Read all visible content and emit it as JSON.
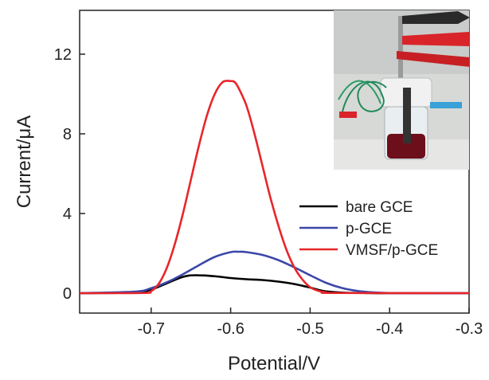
{
  "chart_data": {
    "type": "line",
    "xlabel": "Potential/V",
    "ylabel": "Current/μA",
    "xlim": [
      -0.79,
      -0.3
    ],
    "ylim": [
      -1.0,
      14.2
    ],
    "x_ticks": [
      -0.7,
      -0.6,
      -0.5,
      -0.4,
      -0.3
    ],
    "x_tick_labels": [
      "-0.7",
      "-0.6",
      "-0.5",
      "-0.4",
      "-0.3"
    ],
    "y_ticks": [
      0,
      4,
      8,
      12
    ],
    "y_tick_labels": [
      "0",
      "4",
      "8",
      "12"
    ],
    "grid": false,
    "legend_position": "lower-right",
    "series": [
      {
        "name": "bare GCE",
        "color": "#000000",
        "x": [
          -0.79,
          -0.72,
          -0.7,
          -0.68,
          -0.66,
          -0.645,
          -0.62,
          -0.6,
          -0.58,
          -0.56,
          -0.54,
          -0.52,
          -0.5,
          -0.49,
          -0.48,
          -0.46,
          -0.44,
          -0.42,
          -0.4,
          -0.3
        ],
        "y": [
          0.0,
          0.03,
          0.18,
          0.5,
          0.82,
          0.9,
          0.85,
          0.76,
          0.7,
          0.66,
          0.58,
          0.46,
          0.28,
          0.17,
          0.09,
          0.03,
          0.01,
          0.0,
          0.0,
          0.0
        ]
      },
      {
        "name": "p-GCE",
        "color": "#3b47a8",
        "x": [
          -0.79,
          -0.72,
          -0.7,
          -0.68,
          -0.66,
          -0.64,
          -0.62,
          -0.6,
          -0.59,
          -0.58,
          -0.56,
          -0.54,
          -0.52,
          -0.5,
          -0.48,
          -0.46,
          -0.44,
          -0.42,
          -0.4,
          -0.38,
          -0.3
        ],
        "y": [
          0.0,
          0.08,
          0.25,
          0.55,
          0.95,
          1.4,
          1.82,
          2.06,
          2.08,
          2.06,
          1.92,
          1.66,
          1.3,
          0.9,
          0.52,
          0.26,
          0.11,
          0.04,
          0.01,
          0.0,
          0.0
        ]
      },
      {
        "name": "VMSF/p-GCE",
        "color": "#e8262a",
        "x": [
          -0.79,
          -0.71,
          -0.7,
          -0.69,
          -0.68,
          -0.67,
          -0.66,
          -0.65,
          -0.64,
          -0.63,
          -0.62,
          -0.61,
          -0.6,
          -0.595,
          -0.59,
          -0.58,
          -0.57,
          -0.56,
          -0.55,
          -0.54,
          -0.53,
          -0.52,
          -0.51,
          -0.5,
          -0.49,
          -0.48,
          -0.47,
          -0.3
        ],
        "y": [
          0.0,
          0.01,
          0.1,
          0.5,
          1.3,
          2.5,
          4.0,
          5.7,
          7.4,
          8.9,
          10.0,
          10.6,
          10.65,
          10.6,
          10.3,
          9.4,
          8.0,
          6.4,
          4.8,
          3.4,
          2.2,
          1.3,
          0.7,
          0.3,
          0.12,
          0.04,
          0.01,
          0.0
        ]
      }
    ]
  },
  "inset": {
    "description_icon": "electrochemical-cell-photo-icon"
  }
}
